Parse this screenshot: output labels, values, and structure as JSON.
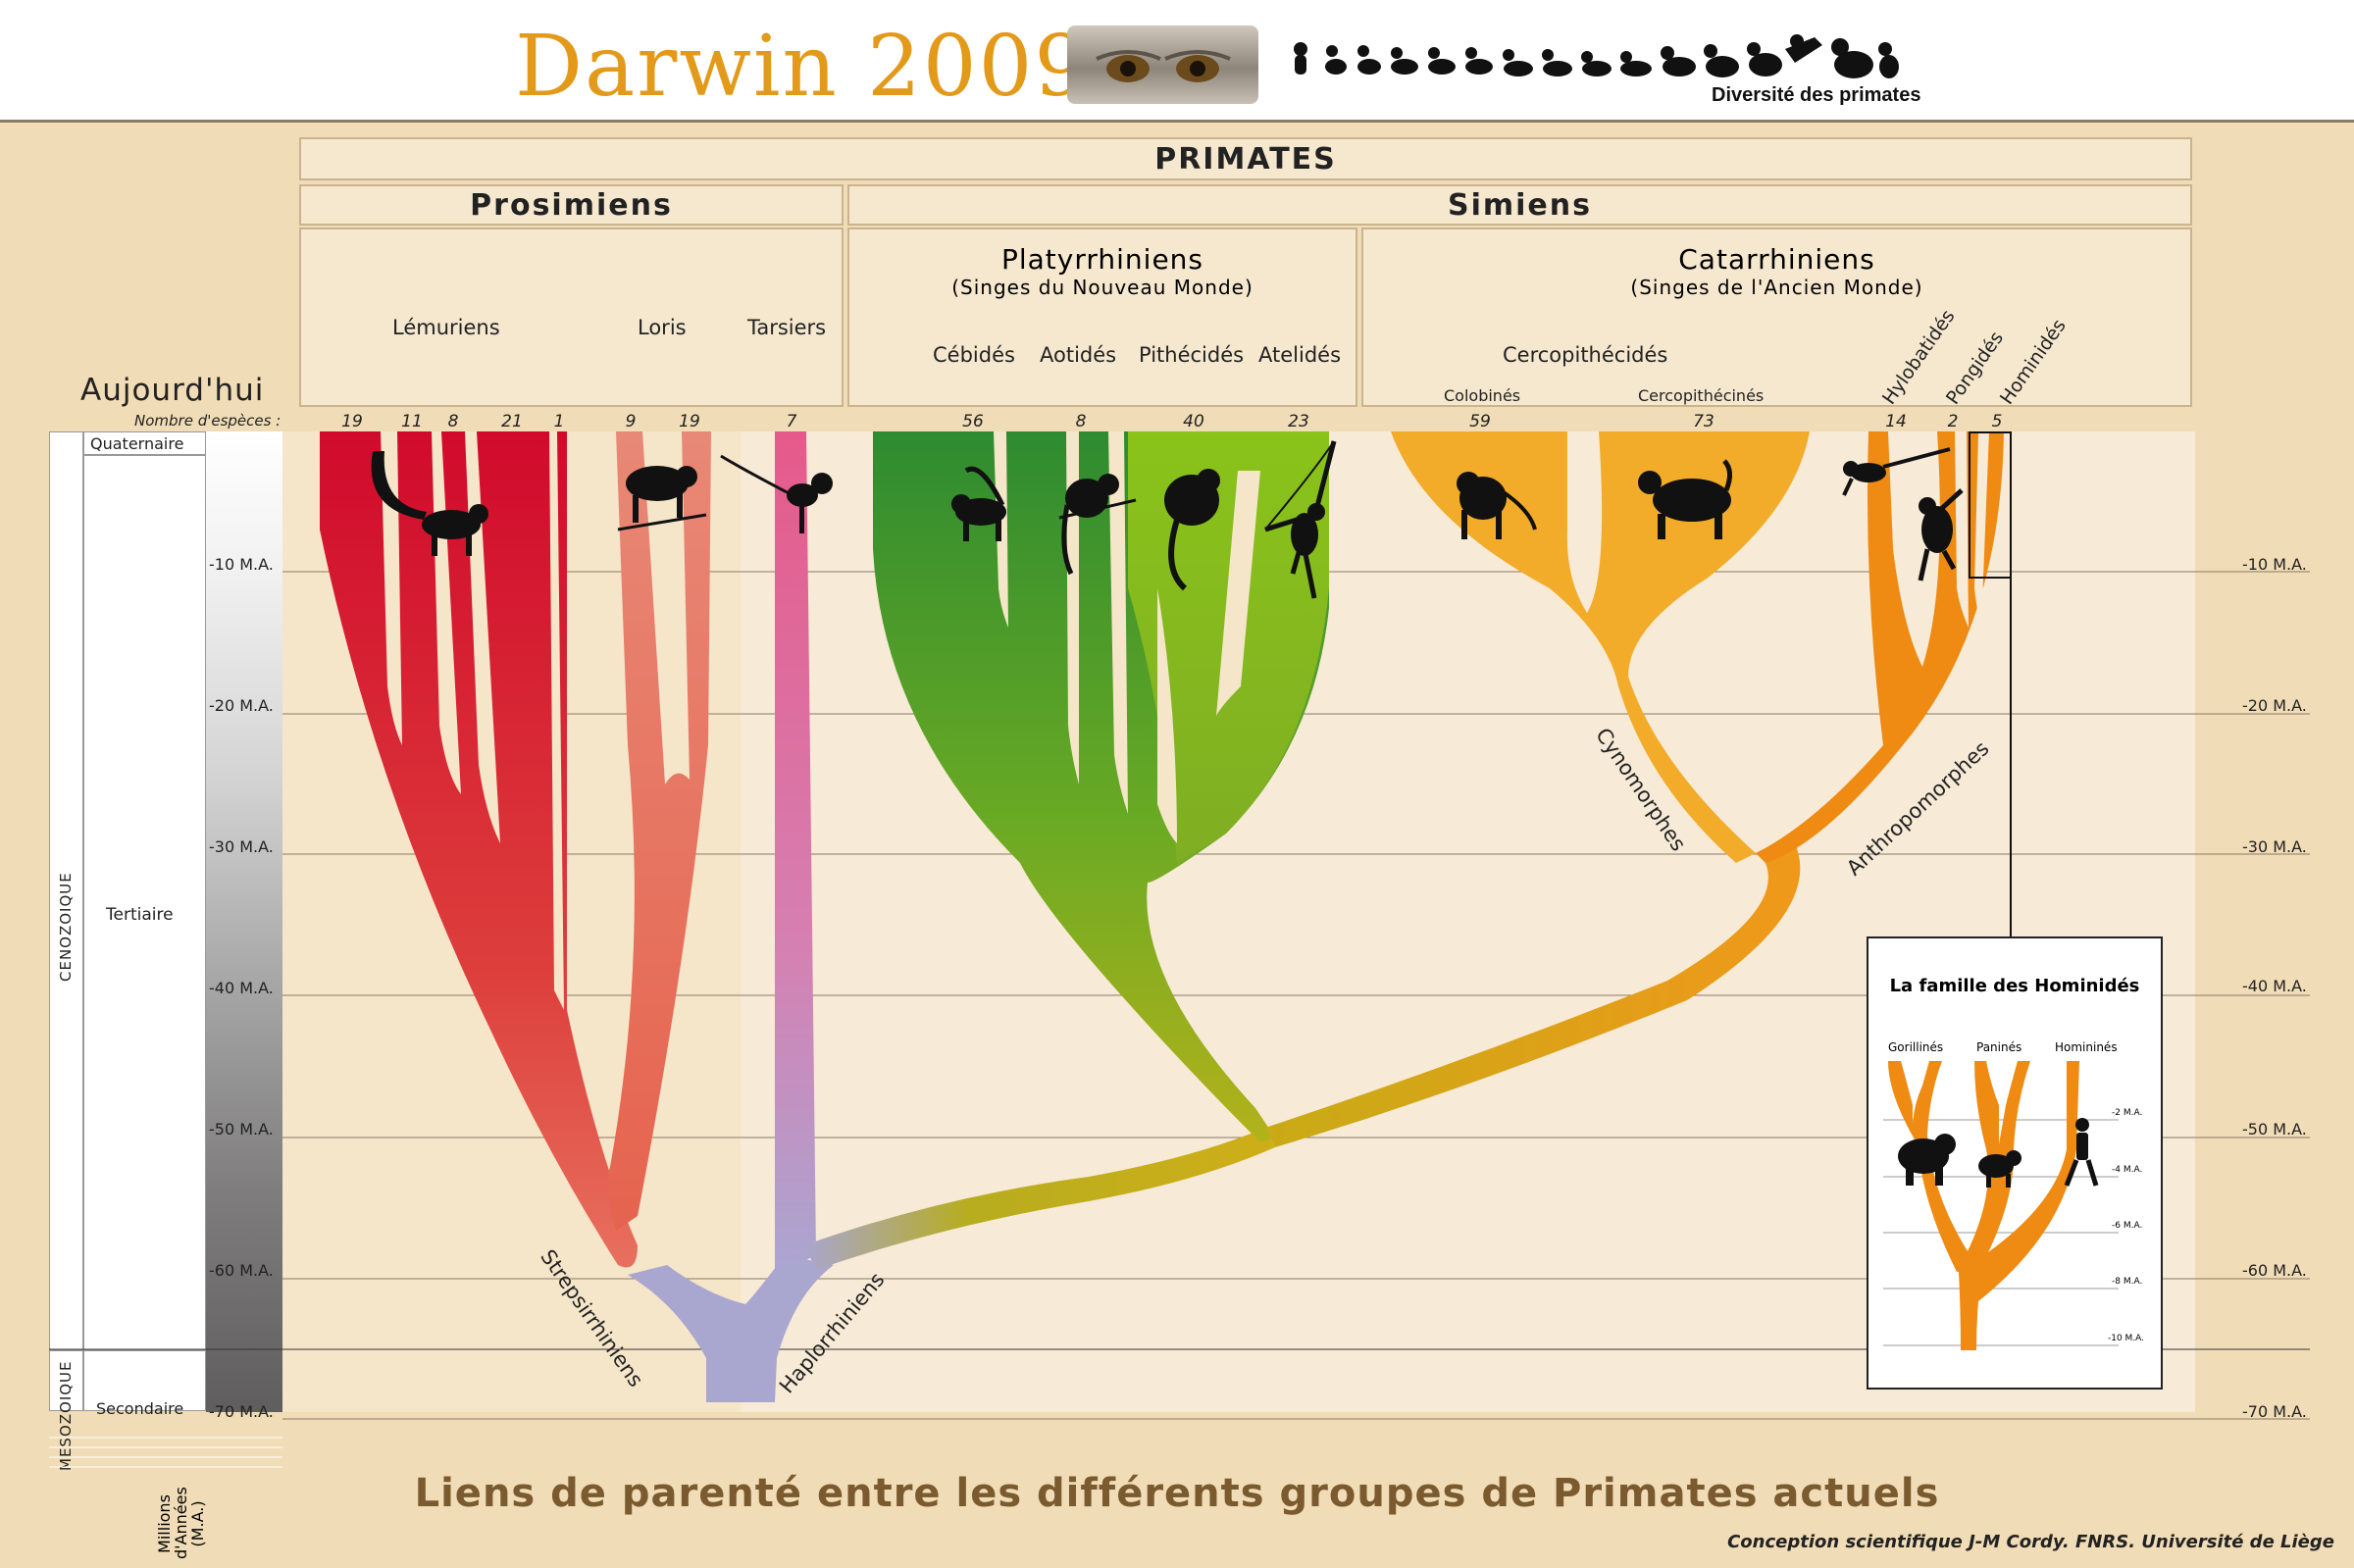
{
  "header": {
    "brand": "Darwin 2009",
    "subtitle": "Diversité des primates"
  },
  "hierarchy": {
    "root": "PRIMATES",
    "prosimiens": "Prosimiens",
    "simiens": "Simiens",
    "platyrrhiniens": "Platyrrhiniens",
    "platyrrhiniens_sub": "(Singes du Nouveau Monde)",
    "catarrhiniens": "Catarrhiniens",
    "catarrhiniens_sub": "(Singes de l'Ancien Monde)"
  },
  "groups": {
    "lemuriens": "Lémuriens",
    "loris": "Loris",
    "tarsiers": "Tarsiers",
    "cebides": "Cébidés",
    "aotides": "Aotidés",
    "pithecides": "Pithécidés",
    "atelides": "Atelidés",
    "cercopithecides": "Cercopithécidés",
    "colobines": "Colobinés",
    "cercopithecines": "Cercopithécinés",
    "hylobatides": "Hylobatidés",
    "pongides": "Pongidés",
    "hominides": "Hominidés"
  },
  "today": "Aujourd'hui",
  "species_label": "Nombre d'espèces :",
  "species_counts": [
    "19",
    "11",
    "8",
    "21",
    "1",
    "9",
    "19",
    "7",
    "56",
    "8",
    "40",
    "23",
    "59",
    "73",
    "14",
    "2",
    "5"
  ],
  "timescale": {
    "eras": [
      "CENOZOIQUE",
      "MESOZOIQUE"
    ],
    "periods": [
      "Quaternaire",
      "Tertiaire",
      "Secondaire"
    ],
    "unit_label": [
      "Millions",
      "d'Années",
      "(M.A.)"
    ],
    "ticks": [
      "-10 M.A.",
      "-20 M.A.",
      "-30 M.A.",
      "-40 M.A.",
      "-50 M.A.",
      "-60 M.A.",
      "-70 M.A."
    ]
  },
  "clades": {
    "strepsirrhiniens": "Strepsirrhiniens",
    "haplorrhiniens": "Haplorrhiniens",
    "cynomorphes": "Cynomorphes",
    "anthropomorphes": "Anthropomorphes"
  },
  "inset": {
    "title": "La famille des Hominidés",
    "columns": [
      "Gorillinés",
      "Paninés",
      "Homininés"
    ],
    "ticks": [
      "-2 M.A.",
      "-4 M.A.",
      "-6 M.A.",
      "-8 M.A.",
      "-10 M.A."
    ]
  },
  "caption": "Liens de parenté entre les différents groupes de Primates actuels",
  "credit": "Conception scientifique J-M Cordy. FNRS. Université de Liège",
  "colors": {
    "lemur_red": "#d4122a",
    "loris_salmon": "#e8806a",
    "tarsier_pink": "#e2628e",
    "haplo_lavender": "#a9a6cf",
    "platy_green": "#3a9a2a",
    "platy_lime": "#86c31e",
    "cerco_yellow": "#f2a92a",
    "anthropo_orange": "#ef8a12",
    "olive": "#b7ad1e"
  }
}
